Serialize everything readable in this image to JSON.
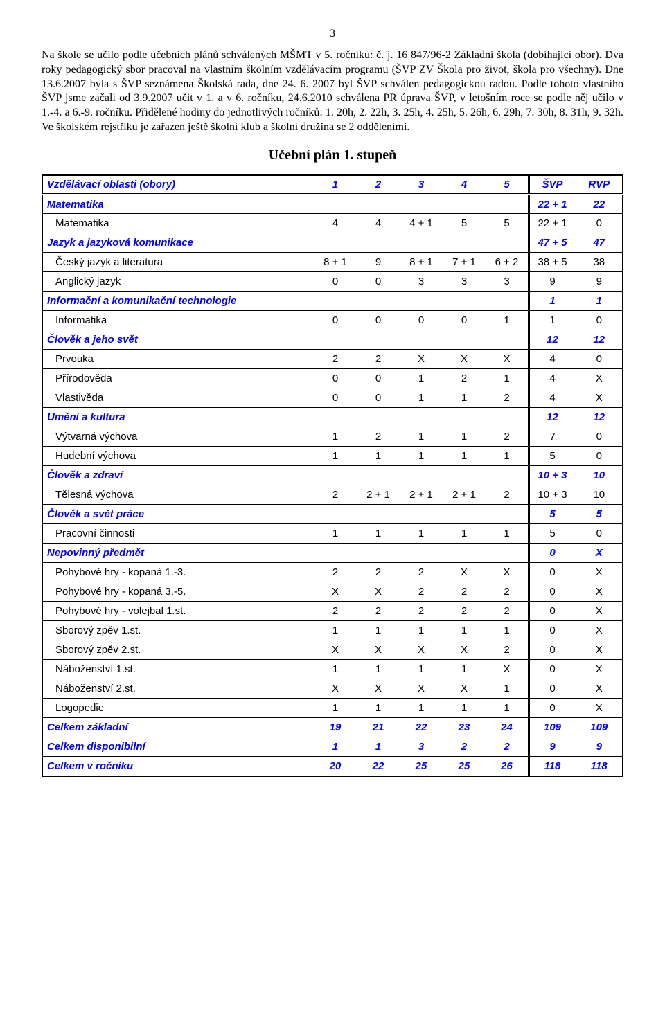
{
  "page_number": "3",
  "body_text": "Na škole se učilo podle učebních plánů schválených MŠMT v 5. ročníku: č. j. 16 847/96-2 Základní škola (dobíhající obor). Dva roky pedagogický sbor pracoval na vlastním školním vzdělávacím programu (ŠVP ZV Škola pro život, škola pro všechny). Dne 13.6.2007 byla s ŠVP seznámena Školská rada, dne 24. 6. 2007 byl ŠVP schválen pedagogickou radou. Podle tohoto vlastního ŠVP jsme začali od 3.9.2007 učit v 1. a v 6. ročníku, 24.6.2010 schválena PR úprava ŠVP, v letošním roce se podle něj učilo v 1.-4. a 6.-9. ročníku. Přidělené hodiny do jednotlivých ročníků: 1. 20h, 2. 22h, 3. 25h, 4. 25h, 5. 26h, 6. 29h, 7. 30h, 8. 31h, 9. 32h. Ve školském rejstříku je zařazen ještě školní klub a školní družina se 2 odděleními.",
  "section_title": "Učební plán 1. stupeň",
  "columns": {
    "name": "Vzdělávací oblasti (obory)",
    "c1": "1",
    "c2": "2",
    "c3": "3",
    "c4": "4",
    "c5": "5",
    "svp": "ŠVP",
    "rvp": "RVP"
  },
  "rows": [
    {
      "type": "area",
      "name": "Matematika",
      "v": [
        "",
        "",
        "",
        "",
        "",
        "22 + 1",
        "22"
      ]
    },
    {
      "type": "subject",
      "name": "Matematika",
      "v": [
        "4",
        "4",
        "4 + 1",
        "5",
        "5",
        "22 + 1",
        "0"
      ]
    },
    {
      "type": "area",
      "name": "Jazyk a jazyková komunikace",
      "v": [
        "",
        "",
        "",
        "",
        "",
        "47 + 5",
        "47"
      ]
    },
    {
      "type": "subject",
      "name": "Český jazyk a literatura",
      "v": [
        "8 + 1",
        "9",
        "8 + 1",
        "7 + 1",
        "6 + 2",
        "38 + 5",
        "38"
      ]
    },
    {
      "type": "subject",
      "name": "Anglický jazyk",
      "v": [
        "0",
        "0",
        "3",
        "3",
        "3",
        "9",
        "9"
      ]
    },
    {
      "type": "area",
      "name": "Informační a komunikační technologie",
      "v": [
        "",
        "",
        "",
        "",
        "",
        "1",
        "1"
      ]
    },
    {
      "type": "subject",
      "name": "Informatika",
      "v": [
        "0",
        "0",
        "0",
        "0",
        "1",
        "1",
        "0"
      ]
    },
    {
      "type": "area",
      "name": "Člověk a jeho svět",
      "v": [
        "",
        "",
        "",
        "",
        "",
        "12",
        "12"
      ]
    },
    {
      "type": "subject",
      "name": "Prvouka",
      "v": [
        "2",
        "2",
        "X",
        "X",
        "X",
        "4",
        "0"
      ]
    },
    {
      "type": "subject",
      "name": "Přírodověda",
      "v": [
        "0",
        "0",
        "1",
        "2",
        "1",
        "4",
        "X"
      ]
    },
    {
      "type": "subject",
      "name": "Vlastivěda",
      "v": [
        "0",
        "0",
        "1",
        "1",
        "2",
        "4",
        "X"
      ]
    },
    {
      "type": "area",
      "name": "Umění a kultura",
      "v": [
        "",
        "",
        "",
        "",
        "",
        "12",
        "12"
      ]
    },
    {
      "type": "subject",
      "name": "Výtvarná výchova",
      "v": [
        "1",
        "2",
        "1",
        "1",
        "2",
        "7",
        "0"
      ]
    },
    {
      "type": "subject",
      "name": "Hudební výchova",
      "v": [
        "1",
        "1",
        "1",
        "1",
        "1",
        "5",
        "0"
      ]
    },
    {
      "type": "area",
      "name": "Člověk a zdraví",
      "v": [
        "",
        "",
        "",
        "",
        "",
        "10 + 3",
        "10"
      ]
    },
    {
      "type": "subject",
      "name": "Tělesná výchova",
      "v": [
        "2",
        "2 + 1",
        "2 + 1",
        "2 + 1",
        "2",
        "10 + 3",
        "10"
      ]
    },
    {
      "type": "area",
      "name": "Člověk a svět práce",
      "v": [
        "",
        "",
        "",
        "",
        "",
        "5",
        "5"
      ]
    },
    {
      "type": "subject",
      "name": "Pracovní činnosti",
      "v": [
        "1",
        "1",
        "1",
        "1",
        "1",
        "5",
        "0"
      ]
    },
    {
      "type": "area",
      "name": "Nepovinný předmět",
      "v": [
        "",
        "",
        "",
        "",
        "",
        "0",
        "X"
      ]
    },
    {
      "type": "subject",
      "name": "Pohybové hry - kopaná 1.-3.",
      "v": [
        "2",
        "2",
        "2",
        "X",
        "X",
        "0",
        "X"
      ]
    },
    {
      "type": "subject",
      "name": "Pohybové hry - kopaná 3.-5.",
      "v": [
        "X",
        "X",
        "2",
        "2",
        "2",
        "0",
        "X"
      ]
    },
    {
      "type": "subject",
      "name": "Pohybové hry - volejbal 1.st.",
      "v": [
        "2",
        "2",
        "2",
        "2",
        "2",
        "0",
        "X"
      ]
    },
    {
      "type": "subject",
      "name": "Sborový zpěv 1.st.",
      "v": [
        "1",
        "1",
        "1",
        "1",
        "1",
        "0",
        "X"
      ]
    },
    {
      "type": "subject",
      "name": "Sborový zpěv 2.st.",
      "v": [
        "X",
        "X",
        "X",
        "X",
        "2",
        "0",
        "X"
      ]
    },
    {
      "type": "subject",
      "name": "Náboženství 1.st.",
      "v": [
        "1",
        "1",
        "1",
        "1",
        "X",
        "0",
        "X"
      ]
    },
    {
      "type": "subject",
      "name": "Náboženství 2.st.",
      "v": [
        "X",
        "X",
        "X",
        "X",
        "1",
        "0",
        "X"
      ]
    },
    {
      "type": "subject",
      "name": "Logopedie",
      "v": [
        "1",
        "1",
        "1",
        "1",
        "1",
        "0",
        "X"
      ]
    },
    {
      "type": "total",
      "name": "Celkem základní",
      "v": [
        "19",
        "21",
        "22",
        "23",
        "24",
        "109",
        "109"
      ]
    },
    {
      "type": "total",
      "name": "Celkem disponibilní",
      "v": [
        "1",
        "1",
        "3",
        "2",
        "2",
        "9",
        "9"
      ]
    },
    {
      "type": "total",
      "name": "Celkem v ročníku",
      "v": [
        "20",
        "22",
        "25",
        "25",
        "26",
        "118",
        "118"
      ]
    }
  ],
  "styling": {
    "accent_color": "#0000ff",
    "text_color": "#000000",
    "border_color": "#000000",
    "body_font": "Times New Roman",
    "table_font": "Arial",
    "body_fontsize_pt": 12,
    "table_fontsize_pt": 11,
    "title_fontsize_pt": 15
  }
}
